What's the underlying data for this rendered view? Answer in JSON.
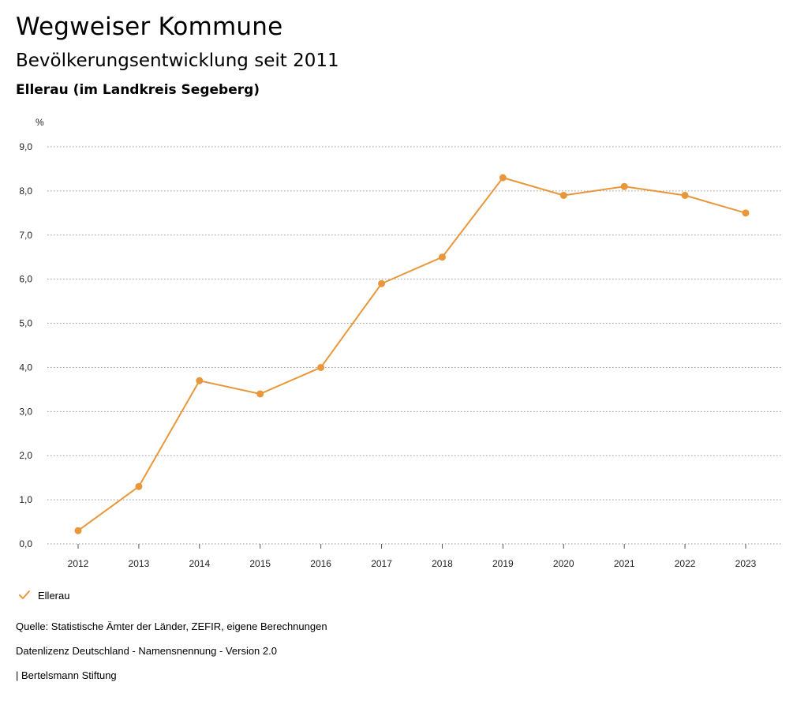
{
  "header": {
    "title": "Wegweiser Kommune",
    "subtitle": "Bevölkerungsentwicklung seit 2011",
    "region": "Ellerau (im Landkreis Segeberg)"
  },
  "chart_data": {
    "type": "line",
    "title": "Bevölkerungsentwicklung seit 2011",
    "ylabel": "%",
    "xlabel": "",
    "ylim": [
      0,
      9
    ],
    "yticks": [
      0,
      1,
      2,
      3,
      4,
      5,
      6,
      7,
      8,
      9
    ],
    "ytick_labels": [
      "0,0",
      "1,0",
      "2,0",
      "3,0",
      "4,0",
      "5,0",
      "6,0",
      "7,0",
      "8,0",
      "9,0"
    ],
    "grid": true,
    "categories": [
      "2012",
      "2013",
      "2014",
      "2015",
      "2016",
      "2017",
      "2018",
      "2019",
      "2020",
      "2021",
      "2022",
      "2023"
    ],
    "series": [
      {
        "name": "Ellerau",
        "color": "#e8973a",
        "values": [
          0.3,
          1.3,
          3.7,
          3.4,
          4.0,
          5.9,
          6.5,
          8.3,
          7.9,
          8.1,
          7.9,
          7.5
        ]
      }
    ],
    "legend_position": "bottom-left"
  },
  "legend": {
    "label": "Ellerau"
  },
  "footer": {
    "source": "Quelle: Statistische Ämter der Länder, ZEFIR, eigene Berechnungen",
    "license": "Datenlizenz Deutschland - Namensnennung - Version 2.0",
    "credit": "| Bertelsmann Stiftung"
  }
}
